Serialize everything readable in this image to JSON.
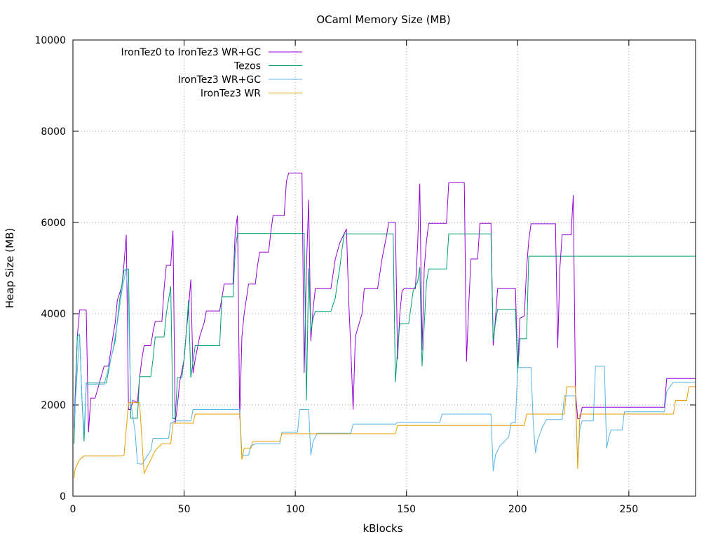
{
  "chart_data": {
    "type": "line",
    "title": "OCaml Memory Size (MB)",
    "xlabel": "kBlocks",
    "ylabel": "Heap Size (MB)",
    "xlim": [
      0,
      280
    ],
    "ylim": [
      0,
      10000
    ],
    "xticks": [
      "0",
      "50",
      "100",
      "150",
      "200",
      "250"
    ],
    "yticks": [
      "0",
      "2000",
      "4000",
      "6000",
      "8000",
      "10000"
    ],
    "grid": true,
    "legend_position": "top-left",
    "series": [
      {
        "name": "IronTez0 to IronTez3 WR+GC",
        "color": "#9400d3",
        "points": [
          [
            0.5,
            1500
          ],
          [
            1,
            2200
          ],
          [
            2,
            3500
          ],
          [
            3,
            4080
          ],
          [
            6,
            4080
          ],
          [
            7,
            1400
          ],
          [
            8,
            2150
          ],
          [
            10,
            2150
          ],
          [
            12,
            2500
          ],
          [
            14,
            2850
          ],
          [
            16,
            2850
          ],
          [
            18,
            3500
          ],
          [
            19,
            3800
          ],
          [
            20,
            4300
          ],
          [
            22,
            4600
          ],
          [
            23,
            5100
          ],
          [
            24,
            5730
          ],
          [
            25,
            1900
          ],
          [
            26,
            1900
          ],
          [
            27,
            2100
          ],
          [
            29,
            2050
          ],
          [
            30,
            2600
          ],
          [
            31,
            3000
          ],
          [
            32,
            3300
          ],
          [
            35,
            3300
          ],
          [
            36,
            3600
          ],
          [
            37,
            3830
          ],
          [
            40,
            3830
          ],
          [
            41,
            4550
          ],
          [
            42,
            5060
          ],
          [
            44,
            5060
          ],
          [
            45,
            5820
          ],
          [
            46,
            1600
          ],
          [
            47,
            2000
          ],
          [
            48,
            2500
          ],
          [
            50,
            3000
          ],
          [
            51,
            3600
          ],
          [
            52,
            4100
          ],
          [
            53,
            4750
          ],
          [
            54,
            2700
          ],
          [
            55,
            3000
          ],
          [
            57,
            3500
          ],
          [
            59,
            3800
          ],
          [
            60,
            4060
          ],
          [
            66,
            4060
          ],
          [
            67,
            4350
          ],
          [
            68,
            4650
          ],
          [
            72,
            4650
          ],
          [
            73,
            5800
          ],
          [
            74,
            6150
          ],
          [
            75,
            1700
          ],
          [
            76,
            3500
          ],
          [
            77,
            4000
          ],
          [
            79,
            4650
          ],
          [
            82,
            4650
          ],
          [
            83,
            5050
          ],
          [
            84,
            5350
          ],
          [
            88,
            5350
          ],
          [
            89,
            5800
          ],
          [
            90,
            6150
          ],
          [
            95,
            6150
          ],
          [
            96,
            6900
          ],
          [
            97,
            7080
          ],
          [
            103,
            7080
          ],
          [
            104,
            2700
          ],
          [
            105,
            5000
          ],
          [
            106,
            6500
          ],
          [
            107,
            3400
          ],
          [
            108,
            4100
          ],
          [
            109,
            4550
          ],
          [
            116,
            4550
          ],
          [
            118,
            5200
          ],
          [
            120,
            5550
          ],
          [
            123,
            5860
          ],
          [
            124,
            4300
          ],
          [
            125,
            3200
          ],
          [
            126,
            1900
          ],
          [
            127,
            3500
          ],
          [
            130,
            4000
          ],
          [
            131,
            4550
          ],
          [
            137,
            4550
          ],
          [
            139,
            5200
          ],
          [
            141,
            5700
          ],
          [
            142,
            6000
          ],
          [
            145,
            6000
          ],
          [
            146,
            3000
          ],
          [
            147,
            4000
          ],
          [
            148,
            4500
          ],
          [
            149,
            4550
          ],
          [
            154,
            4550
          ],
          [
            155,
            5500
          ],
          [
            156,
            6850
          ],
          [
            157,
            3200
          ],
          [
            158,
            5000
          ],
          [
            159,
            5600
          ],
          [
            160,
            5980
          ],
          [
            168,
            5980
          ],
          [
            169,
            6870
          ],
          [
            176,
            6870
          ],
          [
            177,
            2950
          ],
          [
            178,
            4200
          ],
          [
            179,
            5200
          ],
          [
            182,
            5200
          ],
          [
            183,
            5980
          ],
          [
            188,
            5980
          ],
          [
            189,
            3300
          ],
          [
            190,
            3900
          ],
          [
            191,
            4550
          ],
          [
            199,
            4550
          ],
          [
            200,
            2800
          ],
          [
            201,
            3900
          ],
          [
            203,
            3950
          ],
          [
            204,
            5000
          ],
          [
            205,
            5600
          ],
          [
            206,
            5970
          ],
          [
            217,
            5970
          ],
          [
            218,
            3250
          ],
          [
            219,
            5000
          ],
          [
            220,
            5730
          ],
          [
            224,
            5730
          ],
          [
            225,
            6600
          ],
          [
            226,
            2300
          ],
          [
            227,
            1700
          ],
          [
            228,
            1700
          ],
          [
            229,
            1950
          ],
          [
            266,
            1950
          ],
          [
            267,
            2580
          ],
          [
            280,
            2580
          ]
        ]
      },
      {
        "name": "Tezos",
        "color": "#009e73",
        "points": [
          [
            0.5,
            1150
          ],
          [
            1,
            2000
          ],
          [
            2,
            3500
          ],
          [
            3,
            3550
          ],
          [
            4,
            2200
          ],
          [
            5,
            1200
          ],
          [
            6,
            2480
          ],
          [
            15,
            2480
          ],
          [
            17,
            3000
          ],
          [
            19,
            3400
          ],
          [
            21,
            4300
          ],
          [
            23,
            4950
          ],
          [
            25,
            4980
          ],
          [
            26,
            1710
          ],
          [
            29,
            1710
          ],
          [
            30,
            2620
          ],
          [
            35,
            2620
          ],
          [
            36,
            3000
          ],
          [
            37,
            3490
          ],
          [
            41,
            3490
          ],
          [
            42,
            4000
          ],
          [
            44,
            4600
          ],
          [
            45,
            1700
          ],
          [
            46,
            1700
          ],
          [
            47,
            2600
          ],
          [
            49,
            2600
          ],
          [
            50,
            3000
          ],
          [
            51,
            3600
          ],
          [
            52,
            4300
          ],
          [
            53,
            2600
          ],
          [
            55,
            3300
          ],
          [
            66,
            3300
          ],
          [
            67,
            4370
          ],
          [
            72,
            4370
          ],
          [
            73,
            5400
          ],
          [
            74,
            5760
          ],
          [
            104,
            5760
          ],
          [
            105,
            2100
          ],
          [
            106,
            5000
          ],
          [
            107,
            3600
          ],
          [
            108,
            3900
          ],
          [
            109,
            4050
          ],
          [
            116,
            4050
          ],
          [
            118,
            4350
          ],
          [
            119,
            4700
          ],
          [
            120,
            5000
          ],
          [
            121,
            5400
          ],
          [
            122,
            5750
          ],
          [
            144,
            5750
          ],
          [
            145,
            2500
          ],
          [
            146,
            3200
          ],
          [
            147,
            3780
          ],
          [
            151,
            3780
          ],
          [
            153,
            4500
          ],
          [
            155,
            4700
          ],
          [
            156,
            5020
          ],
          [
            157,
            2850
          ],
          [
            159,
            4700
          ],
          [
            160,
            4980
          ],
          [
            168,
            4980
          ],
          [
            169,
            5750
          ],
          [
            188,
            5750
          ],
          [
            189,
            3400
          ],
          [
            190,
            3800
          ],
          [
            191,
            4100
          ],
          [
            199,
            4100
          ],
          [
            200,
            2700
          ],
          [
            201,
            3450
          ],
          [
            204,
            3450
          ],
          [
            205,
            5260
          ],
          [
            280,
            5260
          ]
        ]
      },
      {
        "name": "IronTez3 WR+GC",
        "color": "#56b4e9",
        "points": [
          [
            0.5,
            1500
          ],
          [
            1,
            2000
          ],
          [
            3,
            3560
          ],
          [
            4,
            2200
          ],
          [
            5,
            1400
          ],
          [
            6,
            2450
          ],
          [
            14,
            2450
          ],
          [
            16,
            2800
          ],
          [
            18,
            3200
          ],
          [
            20,
            3800
          ],
          [
            22,
            4500
          ],
          [
            24,
            5000
          ],
          [
            25,
            4200
          ],
          [
            26,
            2050
          ],
          [
            28,
            1400
          ],
          [
            29,
            720
          ],
          [
            31,
            700
          ],
          [
            33,
            850
          ],
          [
            35,
            1000
          ],
          [
            36,
            1270
          ],
          [
            43,
            1270
          ],
          [
            44,
            1600
          ],
          [
            46,
            1650
          ],
          [
            53,
            1650
          ],
          [
            54,
            1900
          ],
          [
            75,
            1900
          ],
          [
            76,
            900
          ],
          [
            79,
            900
          ],
          [
            80,
            1100
          ],
          [
            82,
            1150
          ],
          [
            93,
            1150
          ],
          [
            94,
            1400
          ],
          [
            101,
            1400
          ],
          [
            102,
            1900
          ],
          [
            106,
            1900
          ],
          [
            107,
            900
          ],
          [
            108,
            1200
          ],
          [
            109,
            1300
          ],
          [
            110,
            1380
          ],
          [
            125,
            1380
          ],
          [
            126,
            1580
          ],
          [
            145,
            1580
          ],
          [
            146,
            1620
          ],
          [
            156,
            1620
          ],
          [
            165,
            1620
          ],
          [
            166,
            1800
          ],
          [
            188,
            1800
          ],
          [
            189,
            550
          ],
          [
            190,
            900
          ],
          [
            192,
            1100
          ],
          [
            196,
            1300
          ],
          [
            197,
            1600
          ],
          [
            199,
            1620
          ],
          [
            200,
            2820
          ],
          [
            206,
            2820
          ],
          [
            207,
            1600
          ],
          [
            208,
            950
          ],
          [
            209,
            1230
          ],
          [
            211,
            1500
          ],
          [
            213,
            1680
          ],
          [
            220,
            1680
          ],
          [
            221,
            2200
          ],
          [
            226,
            2200
          ],
          [
            227,
            700
          ],
          [
            228,
            1500
          ],
          [
            229,
            1650
          ],
          [
            234,
            1650
          ],
          [
            235,
            2850
          ],
          [
            239,
            2850
          ],
          [
            240,
            1050
          ],
          [
            241,
            1300
          ],
          [
            242,
            1450
          ],
          [
            247,
            1450
          ],
          [
            248,
            1850
          ],
          [
            257,
            1850
          ],
          [
            266,
            1850
          ],
          [
            267,
            2300
          ],
          [
            270,
            2500
          ],
          [
            280,
            2500
          ]
        ]
      },
      {
        "name": "IronTez3 WR",
        "color": "#e69f00",
        "points": [
          [
            0.5,
            400
          ],
          [
            1,
            600
          ],
          [
            3,
            800
          ],
          [
            5,
            880
          ],
          [
            22,
            880
          ],
          [
            23,
            900
          ],
          [
            25,
            2050
          ],
          [
            30,
            2050
          ],
          [
            32,
            500
          ],
          [
            34,
            700
          ],
          [
            36,
            900
          ],
          [
            37,
            1000
          ],
          [
            40,
            1150
          ],
          [
            44,
            1150
          ],
          [
            45,
            1600
          ],
          [
            54,
            1600
          ],
          [
            55,
            1800
          ],
          [
            75,
            1800
          ],
          [
            76,
            800
          ],
          [
            77,
            1050
          ],
          [
            80,
            1050
          ],
          [
            81,
            1200
          ],
          [
            93,
            1200
          ],
          [
            94,
            1370
          ],
          [
            145,
            1370
          ],
          [
            146,
            1550
          ],
          [
            203,
            1550
          ],
          [
            204,
            1800
          ],
          [
            221,
            1800
          ],
          [
            222,
            2400
          ],
          [
            226,
            2400
          ],
          [
            227,
            600
          ],
          [
            228,
            1800
          ],
          [
            270,
            1800
          ],
          [
            271,
            2100
          ],
          [
            276,
            2100
          ],
          [
            277,
            2400
          ],
          [
            280,
            2400
          ]
        ]
      }
    ]
  }
}
